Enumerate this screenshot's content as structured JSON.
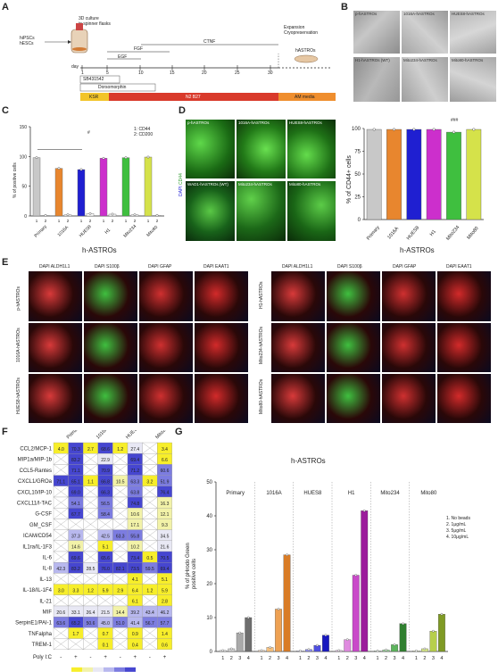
{
  "panels": [
    "A",
    "B",
    "C",
    "D",
    "E",
    "F",
    "G"
  ],
  "panelA": {
    "source": [
      "hiPSCs",
      "hESCs"
    ],
    "culture_title": [
      "3D culture",
      "in spinner flasks"
    ],
    "day_label": "day",
    "ticks": [
      "1",
      "5",
      "10",
      "15",
      "20",
      "25",
      "30"
    ],
    "factors": [
      "FGF",
      "EGF",
      "CTNF"
    ],
    "expansion": [
      "Expansion",
      "Cryopreservation"
    ],
    "product": "hASTROs",
    "inhibitors": [
      "SB431542",
      "Dorsomorphin"
    ],
    "media": [
      "KSR",
      "N2 B27",
      "AM media"
    ]
  },
  "panelB": {
    "labels": [
      "p-hASTROs",
      "1016A-hASTROs",
      "HUES8-hASTROs",
      "H1-hASTROs (WT)",
      "Mito234-hASTROs",
      "Mito80-hASTROs"
    ]
  },
  "panelC": {
    "ylabel": "% of positive cells",
    "legend": [
      "1: CD44",
      "2: CD200"
    ],
    "sig": "#",
    "groups": [
      "Primary",
      "1016A",
      "HUES8",
      "H1",
      "Mito234",
      "Mito80"
    ],
    "xlabel": "h-ASTROs"
  },
  "panelD": {
    "labels": [
      "p-hASTROs",
      "1016A-hASTROs",
      "HUES8-hASTROs",
      "WAD1-hASTROs (WT)",
      "Mito234-hASTROs",
      "Mito80-hASTROs"
    ],
    "stain": [
      "DAPI",
      "CD44"
    ]
  },
  "panelDchart": {
    "ylabel": "% of CD44+ cells",
    "xlabel": "h-ASTROs",
    "sig": "###"
  },
  "panelE": {
    "header_left": [
      "DAPI ALDH1L1",
      "DAPI S100β",
      "DAPI GFAP",
      "DAPI EAAT1"
    ],
    "header_right": [
      "DAPI ALDH1L1",
      "DAPI S100β",
      "DAPI GFAP",
      "DAPI EAAT1"
    ],
    "rows_left": [
      "p-hASTROs",
      "1016A-hASTROs",
      "HUES8-hASTROs"
    ],
    "rows_right": [
      "H1-hASTROs",
      "Mito234-hASTROs",
      "Mito80-hASTROs"
    ]
  },
  "panelF": {
    "columns": [
      "Primary",
      "1016A",
      "HUES8",
      "Mito234"
    ],
    "rows": [
      "CCL2/MCP-1",
      "MIP1a/MIP-1b",
      "CCL5-Rantes",
      "CXCL1/GROa",
      "CXCL10/IP-10",
      "CXCL11/I-TAC",
      "G-CSF",
      "GM_CSF",
      "ICAM/CD54",
      "IL1ra/IL-1F3",
      "IL-6",
      "IL-8",
      "IL-13",
      "IL-18/IL-1F4",
      "IL-21",
      "MIF",
      "SerpinE1/PAI-1",
      "TNFalpha",
      "TREM-1"
    ],
    "polyic_label": "Poly I:C",
    "polyic": [
      "-",
      "+",
      "-",
      "+",
      "-",
      "+",
      "-",
      "+"
    ],
    "cells": [
      [
        "4.0",
        "70.3",
        "2.7",
        "68.6",
        "1.2",
        "27.4",
        "",
        "3.4"
      ],
      [
        "",
        "83.2",
        "",
        "22.9",
        "",
        "69.4",
        "",
        "6.6"
      ],
      [
        "",
        "71.1",
        "",
        "70.9",
        "",
        "71.2",
        "",
        "60.6"
      ],
      [
        "71.1",
        "65.1",
        "1.1",
        "66.8",
        "10.5",
        "63.3",
        "3.2",
        "51.9"
      ],
      [
        "",
        "69.0",
        "",
        "66.3",
        "",
        "63.8",
        "",
        "76.4"
      ],
      [
        "",
        "54.1",
        "",
        "56.5",
        "",
        "74.8",
        "",
        "16.3"
      ],
      [
        "",
        "67.7",
        "",
        "58.4",
        "",
        "10.6",
        "",
        "12.1"
      ],
      [
        "",
        "",
        "",
        "",
        "",
        "17.1",
        "",
        "9.3"
      ],
      [
        "",
        "37.3",
        "",
        "42.5",
        "63.3",
        "55.8",
        "",
        "34.5"
      ],
      [
        "",
        "14.6",
        "",
        "5.1",
        "",
        "10.2",
        "",
        "21.6"
      ],
      [
        "",
        "69.6",
        "",
        "65.6",
        "",
        "73.4",
        "0.5",
        "70.5"
      ],
      [
        "42.3",
        "83.2",
        "28.5",
        "76.0",
        "82.1",
        "73.5",
        "59.5",
        "69.4"
      ],
      [
        "",
        "",
        "",
        "",
        "",
        "4.1",
        "",
        "5.1"
      ],
      [
        "3.0",
        "3.3",
        "1.2",
        "5.9",
        "2.9",
        "6.4",
        "1.2",
        "5.9"
      ],
      [
        "",
        "",
        "",
        "",
        "",
        "6.1",
        "",
        "2.8"
      ],
      [
        "20.6",
        "33.1",
        "26.4",
        "21.5",
        "14.4",
        "39.2",
        "43.4",
        "46.2"
      ],
      [
        "63.6",
        "65.2",
        "50.6",
        "45.0",
        "51.0",
        "41.4",
        "56.7",
        "57.7"
      ],
      [
        "",
        "1.7",
        "",
        "0.7",
        "",
        "0.9",
        "",
        "1.4"
      ],
      [
        "",
        "",
        "",
        "0.1",
        "",
        "0.4",
        "",
        "0.6"
      ]
    ],
    "scale_ticks": [
      "20",
      "40",
      "60",
      "80"
    ]
  },
  "panelG": {
    "title": "h-ASTROs",
    "ylabel": [
      "% of pHrodo Green",
      "positive cells"
    ],
    "legend": [
      "1. No beads",
      "2. 1μg/mL",
      "3. 5μg/mL",
      "4. 10μg/mL"
    ]
  },
  "chart_data": [
    {
      "type": "bar",
      "panel": "C",
      "title": "",
      "xlabel": "h-ASTROs",
      "ylabel": "% of positive cells",
      "ylim": [
        0,
        150
      ],
      "yticks": [
        0,
        50,
        100,
        150
      ],
      "categories": [
        "Primary",
        "1016A",
        "HUES8",
        "H1",
        "Mito234",
        "Mito80"
      ],
      "sub_labels": [
        "1",
        "2"
      ],
      "series": [
        {
          "name": "1: CD44",
          "values": [
            98,
            80,
            78,
            97,
            98,
            99
          ]
        },
        {
          "name": "2: CD200",
          "values": [
            1,
            2,
            4,
            3,
            2,
            1
          ]
        }
      ],
      "colors": [
        "#c8c8c8",
        "#e8862e",
        "#1f1fd1",
        "#cc2fcc",
        "#3fbf3f",
        "#d5e24a"
      ]
    },
    {
      "type": "bar",
      "panel": "D",
      "xlabel": "h-ASTROs",
      "ylabel": "% of CD44+ cells",
      "ylim": [
        0,
        100
      ],
      "yticks": [
        0,
        25,
        50,
        75,
        100
      ],
      "categories": [
        "Primary",
        "1016A",
        "HUES8",
        "H1",
        "Mito234",
        "Mito80"
      ],
      "values": [
        99,
        99,
        99,
        99,
        96,
        99
      ],
      "colors": [
        "#c8c8c8",
        "#e8862e",
        "#1f1fd1",
        "#cc2fcc",
        "#3fbf3f",
        "#d5e24a"
      ]
    },
    {
      "type": "bar",
      "panel": "G",
      "title": "h-ASTROs",
      "ylabel": "% of pHrodo Green positive cells",
      "ylim": [
        0,
        50
      ],
      "yticks": [
        0,
        10,
        20,
        30,
        40,
        50
      ],
      "categories": [
        "Primary",
        "1016A",
        "HUES8",
        "H1",
        "Mito234",
        "Mito80"
      ],
      "sub_labels": [
        "1",
        "2",
        "3",
        "4"
      ],
      "values": [
        [
          0.3,
          0.8,
          5.5,
          10.0
        ],
        [
          0.3,
          1.2,
          12.5,
          28.5
        ],
        [
          0.2,
          0.6,
          1.8,
          4.8
        ],
        [
          0.3,
          3.5,
          22.5,
          41.5
        ],
        [
          0.2,
          0.5,
          2.0,
          8.2
        ],
        [
          0.2,
          0.8,
          6.0,
          11.0
        ]
      ],
      "color_ramps": [
        [
          "#eeeeee",
          "#d0d0d0",
          "#a9a9a9",
          "#6e6e6e"
        ],
        [
          "#fbe2c6",
          "#f5c07e",
          "#eea153",
          "#d97c26"
        ],
        [
          "#d6d6f8",
          "#8f8ff0",
          "#4f4fe0",
          "#1919c0"
        ],
        [
          "#f2d0f2",
          "#e08be0",
          "#c94ac9",
          "#9c1c9c"
        ],
        [
          "#d8efd8",
          "#9dd69d",
          "#5db55d",
          "#2f7f2f"
        ],
        [
          "#eef5c4",
          "#d8e88a",
          "#b7cf4c",
          "#7f9a24"
        ]
      ]
    }
  ]
}
